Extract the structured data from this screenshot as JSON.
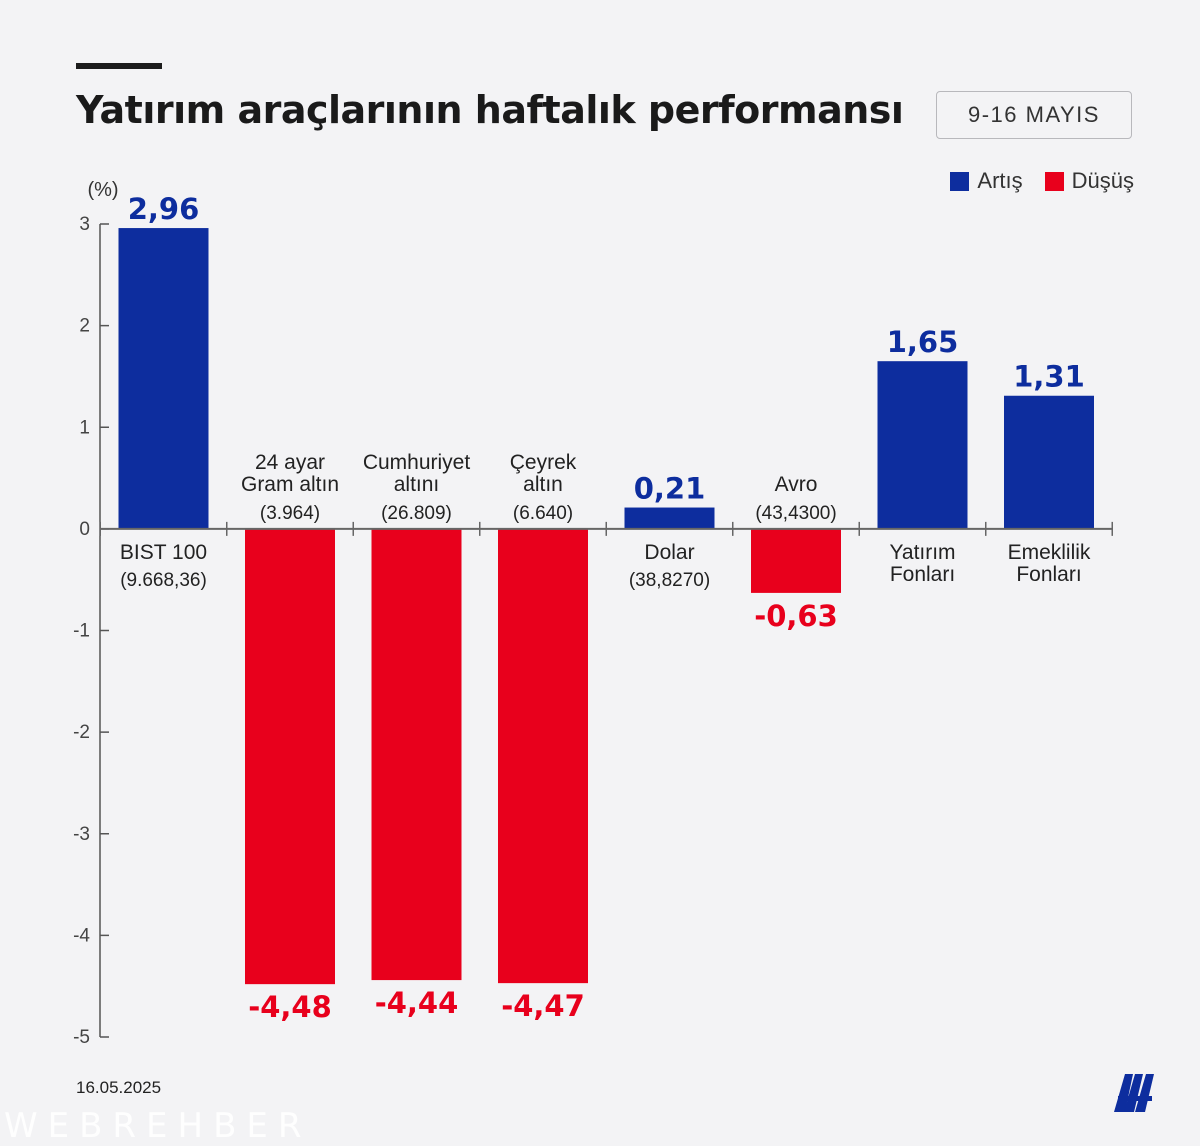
{
  "header": {
    "title": "Yatırım araçlarının haftalık performansı",
    "date_range": "9-16 MAYIS"
  },
  "legend": [
    {
      "label": "Artış",
      "color": "#0d2d9e"
    },
    {
      "label": "Düşüş",
      "color": "#e8001c"
    }
  ],
  "chart_data": {
    "type": "bar",
    "ylabel": "(%)",
    "ylim": [
      -5,
      3
    ],
    "yticks": [
      "3",
      "2",
      "1",
      "0",
      "-1",
      "-2",
      "-3",
      "-4",
      "-5"
    ],
    "categories": [
      {
        "name": [
          "BIST 100"
        ],
        "price": "(9.668,36)"
      },
      {
        "name": [
          "24 ayar",
          "Gram altın"
        ],
        "price": "(3.964)"
      },
      {
        "name": [
          "Cumhuriyet",
          "altını"
        ],
        "price": "(26.809)"
      },
      {
        "name": [
          "Çeyrek",
          "altın"
        ],
        "price": "(6.640)"
      },
      {
        "name": [
          "Dolar"
        ],
        "price": "(38,8270)"
      },
      {
        "name": [
          "Avro"
        ],
        "price": "(43,4300)"
      },
      {
        "name": [
          "Yatırım",
          "Fonları"
        ],
        "price": ""
      },
      {
        "name": [
          "Emeklilik",
          "Fonları"
        ],
        "price": ""
      }
    ],
    "values": [
      2.96,
      -4.48,
      -4.44,
      -4.47,
      0.21,
      -0.63,
      1.65,
      1.31
    ],
    "value_labels": [
      "2,96",
      "-4,48",
      "-4,44",
      "-4,47",
      "0,21",
      "-0,63",
      "1,65",
      "1,31"
    ],
    "positive_color": "#0d2d9e",
    "negative_color": "#e8001c",
    "grid": false,
    "legend_position": "top-right"
  },
  "footer": {
    "date": "16.05.2025",
    "logo": "aa-logo",
    "watermark": "WEBREHBER"
  }
}
